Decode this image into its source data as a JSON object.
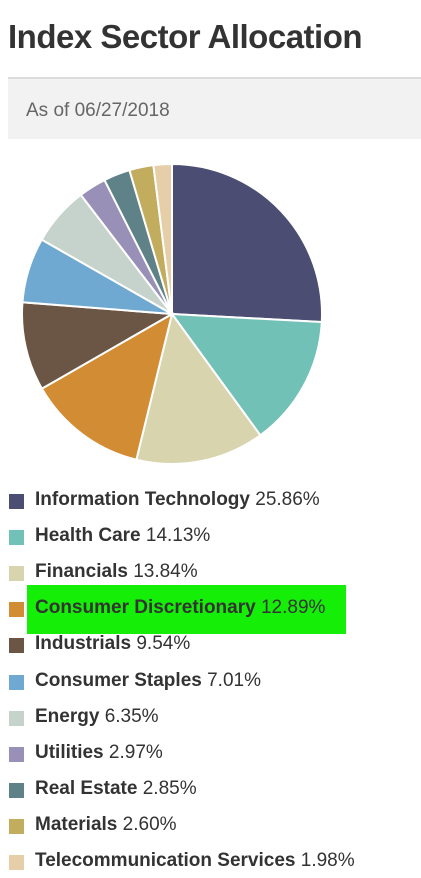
{
  "header": {
    "title": "Index Sector Allocation",
    "as_of": "As of 06/27/2018"
  },
  "chart_data": {
    "type": "pie",
    "title": "Index Sector Allocation",
    "subtitle": "As of 06/27/2018",
    "start_angle": "12 o'clock, clockwise",
    "slices": [
      {
        "label": "Information Technology",
        "value": 25.86,
        "pct_text": "25.86%",
        "color": "#4b4d73"
      },
      {
        "label": "Health Care",
        "value": 14.13,
        "pct_text": "14.13%",
        "color": "#72c1b6"
      },
      {
        "label": "Financials",
        "value": 13.84,
        "pct_text": "13.84%",
        "color": "#d8d4ae"
      },
      {
        "label": "Consumer Discretionary",
        "value": 12.89,
        "pct_text": "12.89%",
        "color": "#d28c34"
      },
      {
        "label": "Industrials",
        "value": 9.54,
        "pct_text": "9.54%",
        "color": "#6b5646"
      },
      {
        "label": "Consumer Staples",
        "value": 7.01,
        "pct_text": "7.01%",
        "color": "#6fa9d2"
      },
      {
        "label": "Energy",
        "value": 6.35,
        "pct_text": "6.35%",
        "color": "#c6d3cd"
      },
      {
        "label": "Utilities",
        "value": 2.97,
        "pct_text": "2.97%",
        "color": "#9890b6"
      },
      {
        "label": "Real Estate",
        "value": 2.85,
        "pct_text": "2.85%",
        "color": "#5e8287"
      },
      {
        "label": "Materials",
        "value": 2.6,
        "pct_text": "2.60%",
        "color": "#c2ac5e"
      },
      {
        "label": "Telecommunication Services",
        "value": 1.98,
        "pct_text": "1.98%",
        "color": "#e6cfa8"
      }
    ],
    "highlighted_entry": "Consumer Discretionary",
    "highlight_color": "#15ee06"
  }
}
